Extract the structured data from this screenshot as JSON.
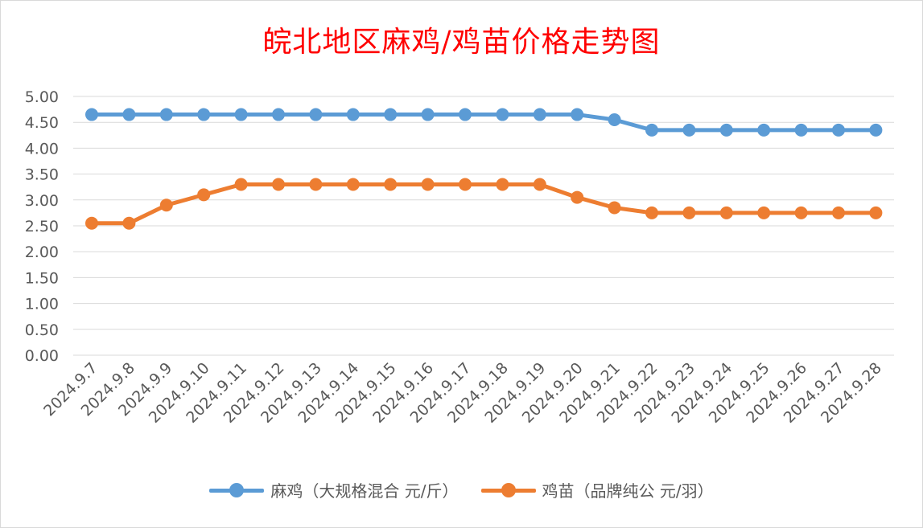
{
  "chart_data": {
    "type": "line",
    "title": "皖北地区麻鸡/鸡苗价格走势图",
    "categories": [
      "2024.9.7",
      "2024.9.8",
      "2024.9.9",
      "2024.9.10",
      "2024.9.11",
      "2024.9.12",
      "2024.9.13",
      "2024.9.14",
      "2024.9.15",
      "2024.9.16",
      "2024.9.17",
      "2024.9.18",
      "2024.9.19",
      "2024.9.20",
      "2024.9.21",
      "2024.9.22",
      "2024.9.23",
      "2024.9.24",
      "2024.9.25",
      "2024.9.26",
      "2024.9.27",
      "2024.9.28"
    ],
    "series": [
      {
        "name": "麻鸡（大规格混合 元/斤）",
        "color": "#5b9bd5",
        "values": [
          4.65,
          4.65,
          4.65,
          4.65,
          4.65,
          4.65,
          4.65,
          4.65,
          4.65,
          4.65,
          4.65,
          4.65,
          4.65,
          4.65,
          4.55,
          4.35,
          4.35,
          4.35,
          4.35,
          4.35,
          4.35,
          4.35
        ]
      },
      {
        "name": "鸡苗（品牌纯公 元/羽）",
        "color": "#ed7d31",
        "values": [
          2.55,
          2.55,
          2.9,
          3.1,
          3.3,
          3.3,
          3.3,
          3.3,
          3.3,
          3.3,
          3.3,
          3.3,
          3.3,
          3.05,
          2.85,
          2.75,
          2.75,
          2.75,
          2.75,
          2.75,
          2.75,
          2.75
        ]
      }
    ],
    "yticks": [
      "0.00",
      "0.50",
      "1.00",
      "1.50",
      "2.00",
      "2.50",
      "3.00",
      "3.50",
      "4.00",
      "4.50",
      "5.00"
    ],
    "ylim": [
      0,
      5
    ],
    "xlabel": "",
    "ylabel": "",
    "grid": true,
    "legend": "bottom"
  }
}
